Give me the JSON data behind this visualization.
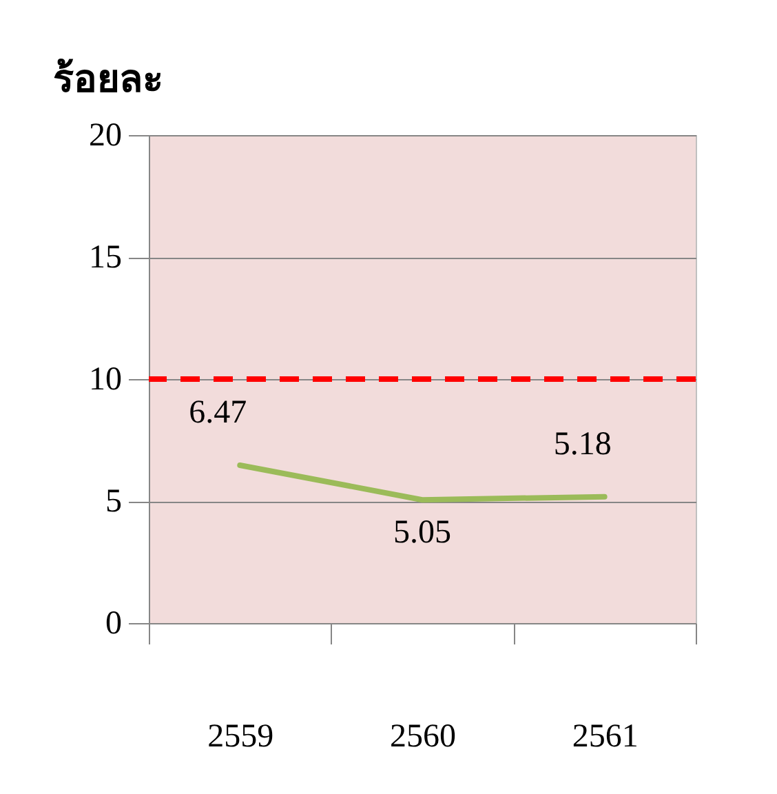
{
  "chart_data": {
    "type": "line",
    "ylabel": "ร้อยละ",
    "categories": [
      "2559",
      "2560",
      "2561"
    ],
    "series": [
      {
        "color": "#9bbb59",
        "values": [
          6.47,
          5.05,
          5.18
        ]
      }
    ],
    "ylim": [
      0,
      20
    ],
    "yticks": [
      0,
      5,
      10,
      15,
      20
    ],
    "grid": "y",
    "data_labels": true,
    "line_style": "solid",
    "ref_lines": [
      {
        "axis": "y",
        "value": 10,
        "color": "#ff0000",
        "line_style": "dashed"
      }
    ]
  }
}
